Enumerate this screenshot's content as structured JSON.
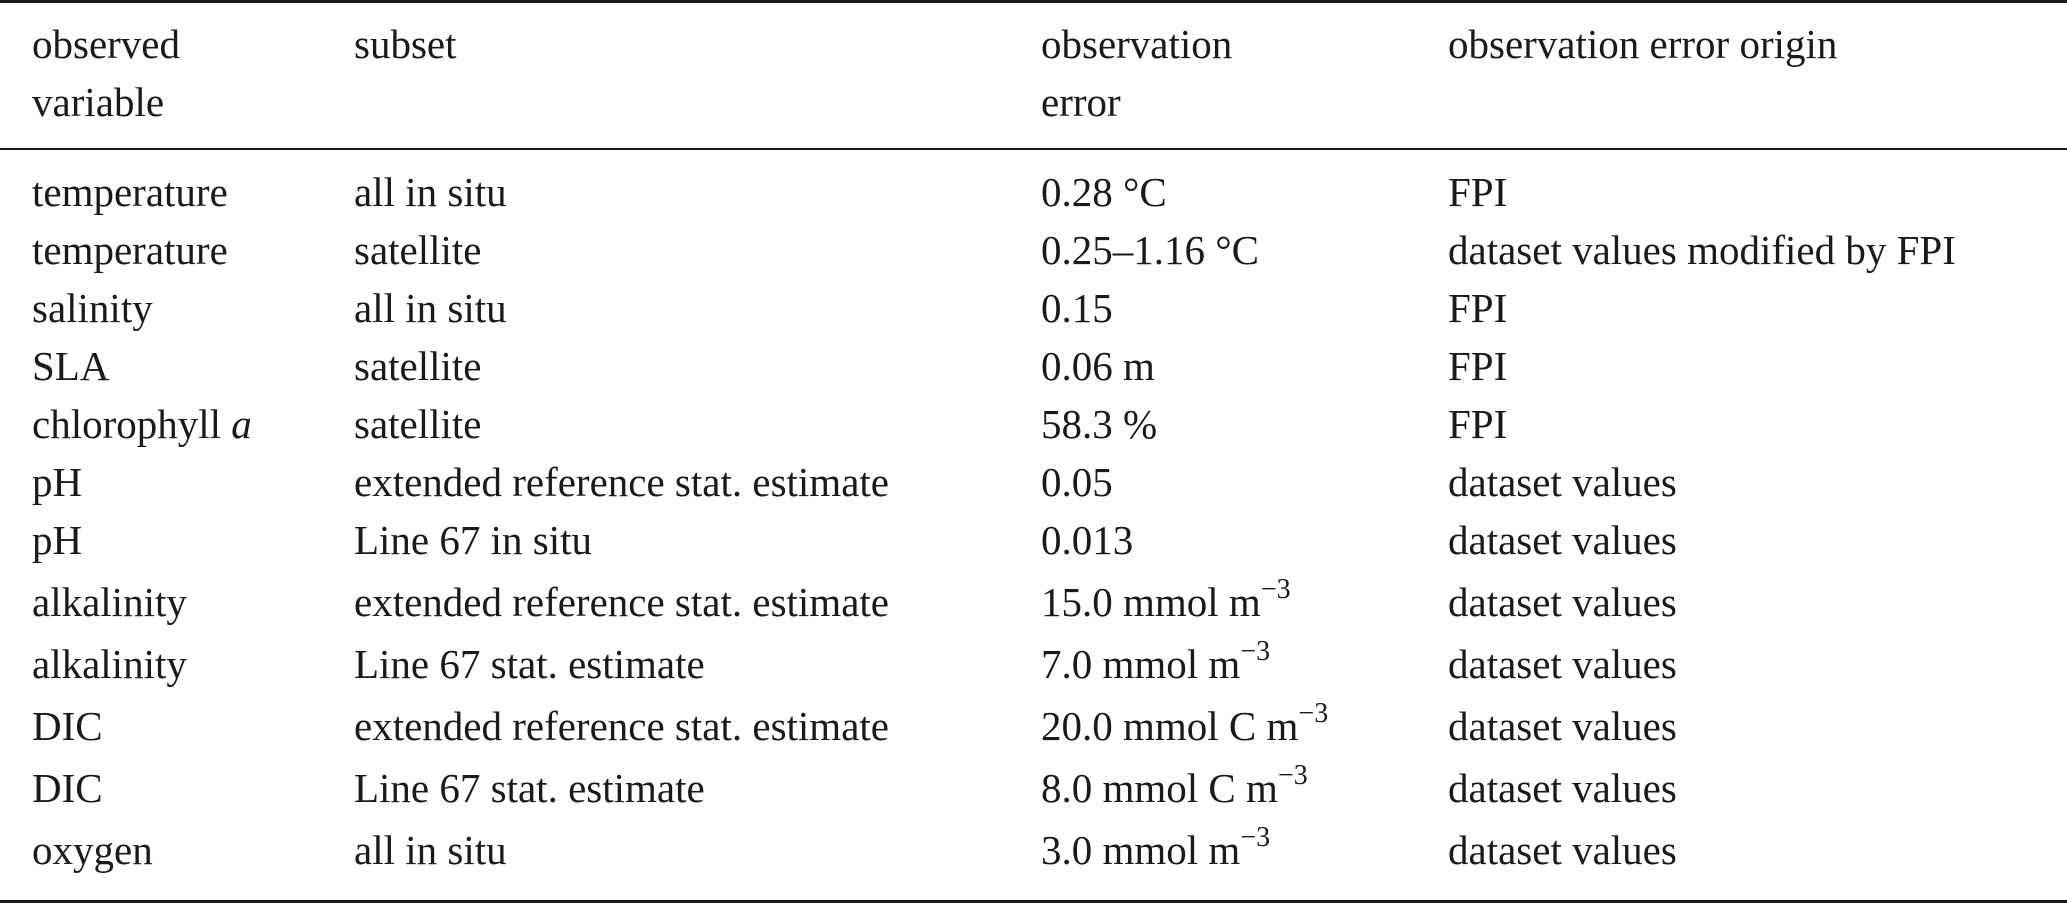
{
  "header": {
    "col1_line1": "observed",
    "col1_line2": "variable",
    "col2": "subset",
    "col3_line1": "observation",
    "col3_line2": "error",
    "col4": "observation error origin"
  },
  "rows": [
    {
      "variable": "temperature",
      "variable_suffix": "",
      "subset": "all in situ",
      "error": "0.28 °C",
      "error_sup": "",
      "origin": "FPI"
    },
    {
      "variable": "temperature",
      "variable_suffix": "",
      "subset": "satellite",
      "error": "0.25–1.16 °C",
      "error_sup": "",
      "origin": "dataset values modified by FPI"
    },
    {
      "variable": "salinity",
      "variable_suffix": "",
      "subset": "all in situ",
      "error": "0.15",
      "error_sup": "",
      "origin": "FPI"
    },
    {
      "variable": "SLA",
      "variable_suffix": "",
      "subset": "satellite",
      "error": "0.06 m",
      "error_sup": "",
      "origin": "FPI"
    },
    {
      "variable": "chlorophyll ",
      "variable_suffix": "a",
      "subset": "satellite",
      "error": "58.3 %",
      "error_sup": "",
      "origin": "FPI"
    },
    {
      "variable": "pH",
      "variable_suffix": "",
      "subset": "extended reference stat. estimate",
      "error": "0.05",
      "error_sup": "",
      "origin": "dataset values"
    },
    {
      "variable": "pH",
      "variable_suffix": "",
      "subset": "Line 67 in situ",
      "error": "0.013",
      "error_sup": "",
      "origin": "dataset values"
    },
    {
      "variable": "alkalinity",
      "variable_suffix": "",
      "subset": "extended reference stat. estimate",
      "error": "15.0 mmol m",
      "error_sup": "−3",
      "origin": "dataset values"
    },
    {
      "variable": "alkalinity",
      "variable_suffix": "",
      "subset": "Line 67 stat. estimate",
      "error": "7.0 mmol m",
      "error_sup": "−3",
      "origin": "dataset values"
    },
    {
      "variable": "DIC",
      "variable_suffix": "",
      "subset": "extended reference stat. estimate",
      "error": "20.0 mmol C m",
      "error_sup": "−3",
      "origin": "dataset values"
    },
    {
      "variable": "DIC",
      "variable_suffix": "",
      "subset": "Line 67 stat. estimate",
      "error": "8.0 mmol C m",
      "error_sup": "−3",
      "origin": "dataset values"
    },
    {
      "variable": "oxygen",
      "variable_suffix": "",
      "subset": "all in situ",
      "error": "3.0 mmol m",
      "error_sup": "−3",
      "origin": "dataset values"
    }
  ]
}
